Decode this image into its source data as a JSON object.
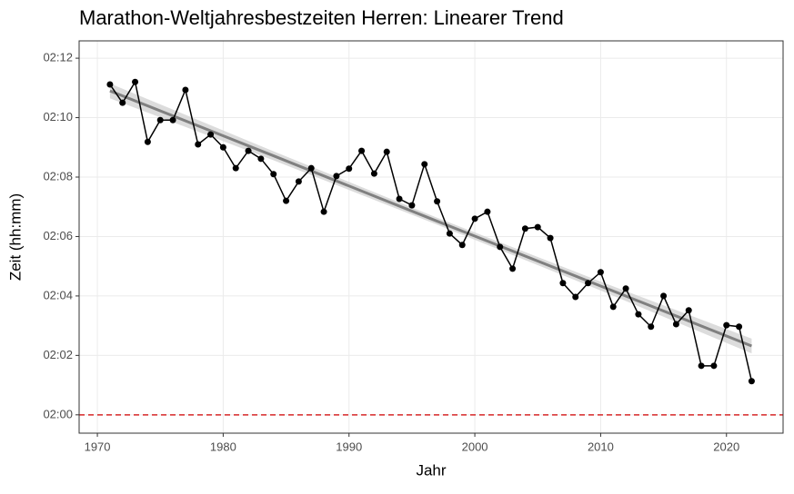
{
  "chart_data": {
    "type": "line",
    "title": "Marathon-Weltjahresbestzeiten Herren: Linearer Trend",
    "x_label": "Jahr",
    "y_label": "Zeit (hh:mm)",
    "series": [
      {
        "color": "#000000",
        "x": [
          1971,
          1972,
          1973,
          1974,
          1975,
          1976,
          1977,
          1978,
          1979,
          1980,
          1981,
          1982,
          1983,
          1984,
          1985,
          1986,
          1987,
          1988,
          1989,
          1990,
          1991,
          1992,
          1993,
          1994,
          1995,
          1996,
          1997,
          1998,
          1999,
          2000,
          2001,
          2002,
          2003,
          2004,
          2005,
          2006,
          2007,
          2008,
          2009,
          2010,
          2011,
          2012,
          2013,
          2014,
          2015,
          2016,
          2017,
          2018,
          2019,
          2020,
          2021,
          2022
        ],
        "values": [
          7867,
          7830,
          7872,
          7751,
          7795,
          7795,
          7856,
          7746,
          7766,
          7740,
          7698,
          7733,
          7717,
          7686,
          7632,
          7671,
          7698,
          7610,
          7682,
          7697,
          7733,
          7687,
          7731,
          7636,
          7623,
          7706,
          7631,
          7566,
          7543,
          7596,
          7610,
          7539,
          7495,
          7576,
          7579,
          7557,
          7466,
          7438,
          7466,
          7488,
          7418,
          7455,
          7403,
          7378,
          7440,
          7383,
          7411,
          7299,
          7299,
          7381,
          7378,
          7268
        ]
      }
    ],
    "trend": {
      "color": "#808080",
      "band_color": "#d3d3d3",
      "x": [
        1971,
        1984,
        1997,
        2010,
        2022
      ],
      "values": [
        7854,
        7723,
        7591,
        7460,
        7339
      ],
      "lower": [
        7839,
        7714,
        7584,
        7451,
        7324
      ],
      "upper": [
        7869,
        7732,
        7598,
        7469,
        7354
      ]
    },
    "reference_line": {
      "value": 7200,
      "color": "#d62728"
    },
    "xlim": [
      1968.55,
      2024.5
    ],
    "xticks": [
      1970,
      1980,
      1990,
      2000,
      2010,
      2020
    ],
    "ylim": [
      7163,
      7955
    ],
    "yticks": [
      {
        "value": 7200,
        "label": "02:00"
      },
      {
        "value": 7320,
        "label": "02:02"
      },
      {
        "value": 7440,
        "label": "02:04"
      },
      {
        "value": 7560,
        "label": "02:06"
      },
      {
        "value": 7680,
        "label": "02:08"
      },
      {
        "value": 7800,
        "label": "02:10"
      },
      {
        "value": 7920,
        "label": "02:12"
      }
    ],
    "grid": true
  }
}
